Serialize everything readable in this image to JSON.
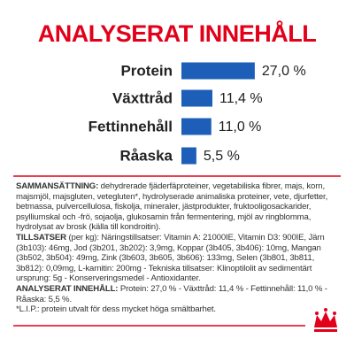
{
  "chart_data": {
    "type": "bar",
    "title": "ANALYSERAT INNEHÅLL",
    "categories": [
      "Protein",
      "Växttråd",
      "Fettinnehåll",
      "Råaska"
    ],
    "values": [
      27.0,
      11.4,
      11.0,
      5.5
    ],
    "value_labels": [
      "27,0 %",
      "11,4 %",
      "11,0 %",
      "5,5 %"
    ],
    "color": "#1d5fb8"
  },
  "composition": [
    {
      "label": "SAMMANSÄTTNING:",
      "text": " dehydrerade fjäderfäproteiner, vegetabiliska fibrer, majs, korn, majsmjöl, majsgluten, vetegluten*, hydrolyserade animaliska proteiner, vete, djurfetter, betmassa, pulvercellulosa, fiskolja, mineraler, jästprodukter, fruktooligosackarider, psylliumskal och -frö, sojaolja, glukosamin från fermentering, mjöl av ringblomma, hydrolysat av brosk (källa till kondroitin)."
    },
    {
      "label": "TILLSATSER",
      "text": " (per kg): Näringstillsatser: Vitamin A: 21000IE, Vitamin D3: 900IE, Järn (3b103): 46mg, Jod (3b201, 3b202): 3,9mg, Koppar (3b405, 3b406): 10mg, Mangan (3b502, 3b504): 49mg, Zink (3b603, 3b605, 3b606): 133mg, Selen (3b801, 3b811, 3b812): 0,09mg, L-karnitin: 200mg - Tekniska tillsatser: Klinoptilolit av sedimentärt ursprung: 5g - Konserveringsmedel - Antioxidanter."
    },
    {
      "label": "ANALYSERAT INNEHÅLL:",
      "text": " Protein: 27,0 % - Växttråd: 11,4 % - Fettinnehåll: 11,0 % - Råaska: 5,5 %."
    },
    {
      "label": "",
      "text": "*L.I.P.: protein utvalt för dess mycket höga smältbarhet."
    }
  ]
}
